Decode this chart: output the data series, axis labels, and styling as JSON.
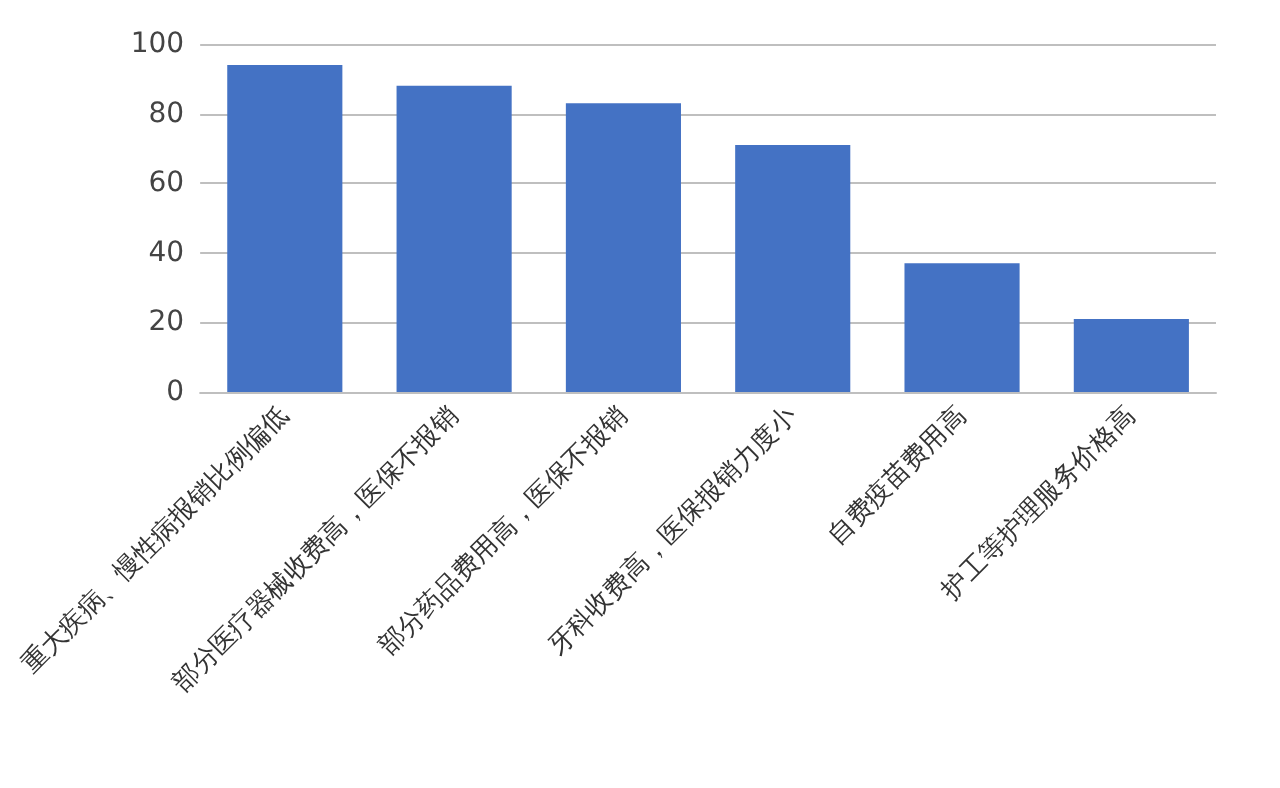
{
  "chart_data": {
    "type": "bar",
    "categories": [
      "重大疾病、慢性病报销比例偏低",
      "部分医疗器械收费高，医保不报销",
      "部分药品费用高，医保不报销",
      "牙科收费高，医保报销力度小",
      "自费疫苗费用高",
      "护工等护理服务价格高"
    ],
    "values": [
      94,
      88,
      83,
      71,
      37,
      21
    ],
    "color": "#4472c4",
    "ylim": [
      0,
      100
    ],
    "yticks": [
      0,
      20,
      40,
      60,
      80,
      100
    ],
    "grid": "y"
  }
}
